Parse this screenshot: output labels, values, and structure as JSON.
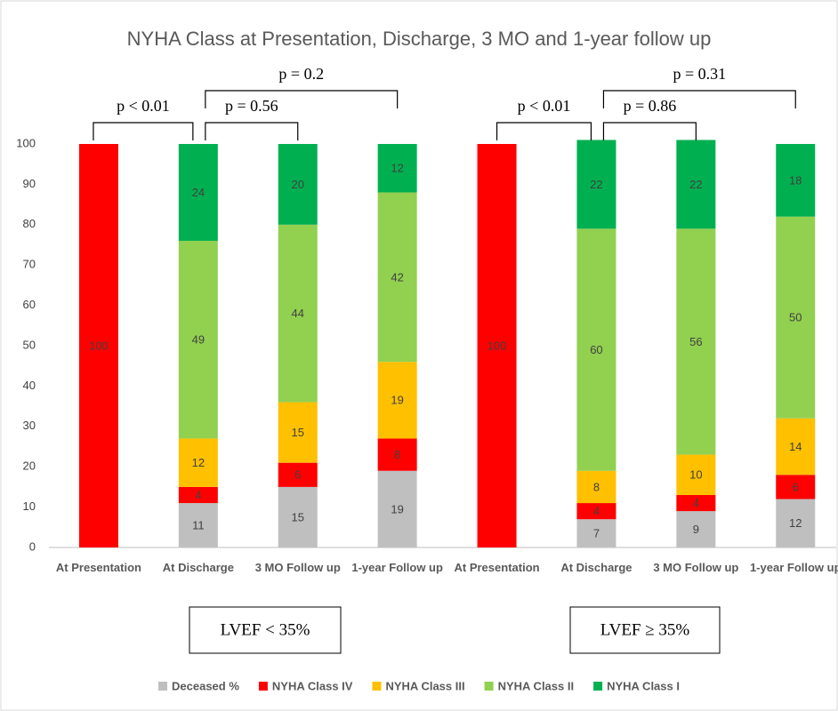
{
  "chart_data": {
    "type": "stacked_bar",
    "title": "NYHA Class at Presentation, Discharge, 3 MO and 1-year follow up",
    "categories": [
      "At Presentation",
      "At Discharge",
      "3 MO Follow up",
      "1-year Follow up",
      "At Presentation",
      "At Discharge",
      "3 MO Follow up",
      "1-year Follow up"
    ],
    "series": [
      {
        "name": "Deceased %",
        "color": "#bfbfbf",
        "values": [
          null,
          11,
          15,
          19,
          null,
          7,
          9,
          12
        ]
      },
      {
        "name": "NYHA Class IV",
        "color": "#ff0000",
        "values": [
          100,
          4,
          6,
          8,
          100,
          4,
          4,
          6
        ]
      },
      {
        "name": "NYHA Class III",
        "color": "#ffc000",
        "values": [
          null,
          12,
          15,
          19,
          null,
          8,
          10,
          14
        ]
      },
      {
        "name": "NYHA Class II",
        "color": "#92d050",
        "values": [
          null,
          49,
          44,
          42,
          null,
          60,
          56,
          50
        ]
      },
      {
        "name": "NYHA Class I",
        "color": "#00b050",
        "values": [
          null,
          24,
          20,
          12,
          null,
          22,
          22,
          18
        ]
      }
    ],
    "ylim": [
      0,
      100
    ],
    "yticks": [
      0,
      10,
      20,
      30,
      40,
      50,
      60,
      70,
      80,
      90,
      100
    ],
    "grid": false,
    "legend": "bottom",
    "annotations": [
      "p < 0.01",
      "p = 0.56",
      "p = 0.2",
      "p < 0.01",
      "p = 0.86",
      "p = 0.31"
    ],
    "group_labels": [
      "LVEF < 35%",
      "LVEF ≥ 35%"
    ]
  }
}
